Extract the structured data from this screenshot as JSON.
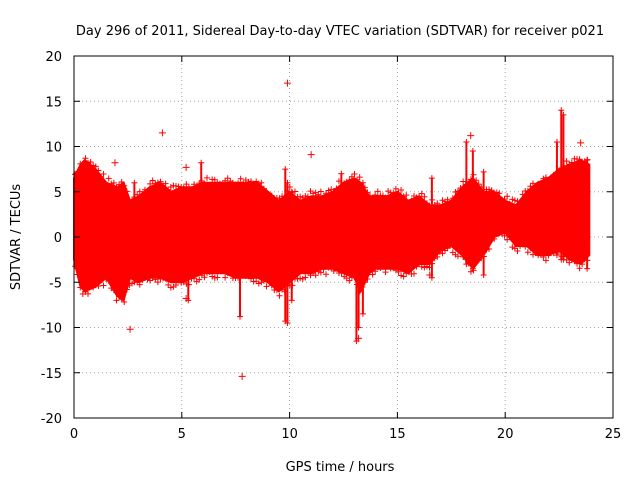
{
  "chart_data": {
    "type": "scatter",
    "title": "Day 296 of 2011, Sidereal Day-to-day VTEC variation (SDTVAR) for receiver p021",
    "xlabel": "GPS time / hours",
    "ylabel": "SDTVAR / TECUs",
    "xlim": [
      0,
      25
    ],
    "ylim": [
      -20,
      20
    ],
    "xticks": [
      0,
      5,
      10,
      15,
      20,
      25
    ],
    "yticks": [
      -20,
      -15,
      -10,
      -5,
      0,
      5,
      10,
      15,
      20
    ],
    "grid": true,
    "series_color": "#ff0000",
    "marker": "+",
    "band_x": [
      0,
      0.3,
      0.5,
      1.0,
      1.5,
      2.0,
      2.3,
      2.6,
      3.0,
      3.5,
      4.0,
      4.5,
      5.0,
      5.5,
      6.0,
      6.5,
      7.0,
      7.5,
      8.0,
      8.5,
      9.0,
      9.5,
      10.0,
      10.5,
      11.0,
      11.5,
      12.0,
      12.5,
      13.0,
      13.3,
      13.7,
      14.0,
      14.5,
      15.0,
      15.5,
      16.0,
      16.5,
      17.0,
      17.5,
      18.0,
      18.5,
      19.0,
      19.5,
      20.0,
      20.5,
      21.0,
      21.5,
      22.0,
      22.5,
      23.0,
      23.5,
      23.9
    ],
    "band_upper": [
      6.5,
      8.0,
      8.5,
      7.5,
      6.0,
      5.5,
      6.0,
      4.0,
      4.5,
      5.5,
      6.0,
      5.0,
      5.5,
      5.5,
      6.0,
      6.0,
      6.0,
      6.0,
      6.0,
      6.0,
      5.0,
      4.0,
      5.0,
      4.0,
      4.5,
      4.5,
      5.0,
      6.0,
      6.5,
      6.0,
      4.5,
      4.5,
      4.5,
      5.0,
      4.0,
      4.5,
      3.5,
      3.5,
      4.0,
      5.5,
      6.5,
      5.0,
      5.0,
      4.0,
      3.5,
      5.0,
      6.0,
      6.5,
      7.5,
      8.0,
      8.5,
      8.0
    ],
    "band_lower": [
      -2.5,
      -5.5,
      -6.0,
      -5.5,
      -4.5,
      -6.5,
      -7.0,
      -4.5,
      -5.0,
      -4.5,
      -4.5,
      -5.0,
      -5.0,
      -4.5,
      -4.0,
      -4.0,
      -4.0,
      -4.5,
      -4.5,
      -4.5,
      -5.0,
      -6.0,
      -5.0,
      -4.0,
      -4.0,
      -3.5,
      -3.5,
      -4.0,
      -4.5,
      -6.0,
      -4.0,
      -3.5,
      -3.5,
      -3.5,
      -4.0,
      -3.0,
      -3.0,
      -1.5,
      -1.0,
      -2.0,
      -3.5,
      -2.0,
      0.0,
      0.5,
      -1.0,
      -1.0,
      -2.0,
      -2.0,
      -1.5,
      -2.5,
      -3.0,
      -2.0
    ],
    "spikes": [
      {
        "x": 0.1,
        "lo": -3,
        "hi": 7
      },
      {
        "x": 2.8,
        "lo": -5,
        "hi": 6
      },
      {
        "x": 5.3,
        "lo": -7,
        "hi": 5
      },
      {
        "x": 5.9,
        "lo": -3,
        "hi": 8.2
      },
      {
        "x": 7.7,
        "lo": -8.8,
        "hi": 5
      },
      {
        "x": 9.8,
        "lo": -9.3,
        "hi": 7.5
      },
      {
        "x": 9.9,
        "lo": -9.5,
        "hi": 6
      },
      {
        "x": 10.1,
        "lo": -7,
        "hi": 5
      },
      {
        "x": 12.4,
        "lo": -3.5,
        "hi": 7
      },
      {
        "x": 13.1,
        "lo": -11.5,
        "hi": 6
      },
      {
        "x": 13.2,
        "lo": -10,
        "hi": 5.5
      },
      {
        "x": 13.4,
        "lo": -8.5,
        "hi": 6
      },
      {
        "x": 16.6,
        "lo": -4.5,
        "hi": 6.5
      },
      {
        "x": 18.2,
        "lo": -3,
        "hi": 10.5
      },
      {
        "x": 18.5,
        "lo": -3.5,
        "hi": 9.5
      },
      {
        "x": 19.0,
        "lo": -4.2,
        "hi": 7.2
      },
      {
        "x": 22.4,
        "lo": -2,
        "hi": 10.5
      },
      {
        "x": 22.6,
        "lo": -2.5,
        "hi": 14
      },
      {
        "x": 22.7,
        "lo": -2.5,
        "hi": 13.5
      },
      {
        "x": 23.8,
        "lo": -3.5,
        "hi": 8.5
      }
    ],
    "outliers": [
      {
        "x": 1.9,
        "y": 8.2
      },
      {
        "x": 2.6,
        "y": -10.2
      },
      {
        "x": 4.1,
        "y": 11.5
      },
      {
        "x": 5.2,
        "y": 7.7
      },
      {
        "x": 5.2,
        "y": -6.8
      },
      {
        "x": 7.8,
        "y": -15.4
      },
      {
        "x": 9.9,
        "y": 17.0
      },
      {
        "x": 11.0,
        "y": 9.1
      },
      {
        "x": 18.4,
        "y": 11.2
      },
      {
        "x": 23.5,
        "y": 10.4
      },
      {
        "x": 16.5,
        "y": -4.2
      },
      {
        "x": 13.2,
        "y": -11.2
      }
    ]
  }
}
